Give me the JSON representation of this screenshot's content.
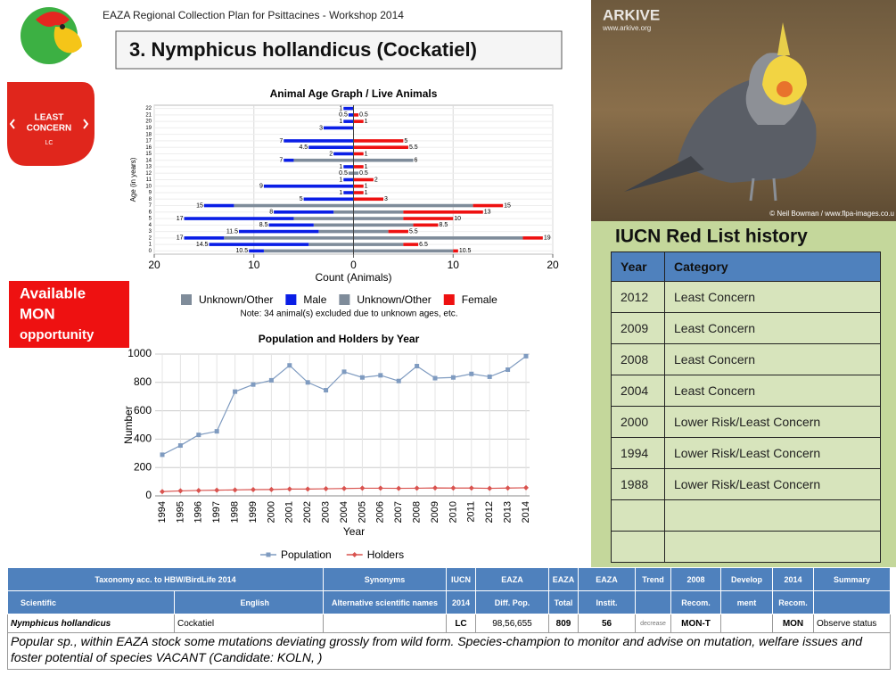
{
  "header": {
    "workshop": "EAZA Regional Collection Plan for Psittacines - Workshop 2014",
    "title": "3. Nymphicus hollandicus (Cockatiel)",
    "badge_lines": [
      "LEAST",
      "CONCERN"
    ],
    "badge_code": "LC",
    "opportunity_lines": [
      "Available",
      "MON",
      "opportunity"
    ]
  },
  "photo": {
    "brand": "ARKIVE",
    "url": "www.arkive.org",
    "credit": "© Neil Bowman / www.flpa-images.co.u"
  },
  "chart_data": [
    {
      "type": "pyramid",
      "title": "Animal Age Graph / Live Animals",
      "xlabel": "Count (Animals)",
      "ylabel": "Age (in years)",
      "note": "Note: 34 animal(s) excluded due to unknown ages, etc.",
      "categories": [
        "0",
        "1",
        "2",
        "3",
        "4",
        "5",
        "6",
        "7",
        "8",
        "9",
        "10",
        "11",
        "12",
        "13",
        "14",
        "15",
        "16",
        "17",
        "18",
        "19",
        "20",
        "21",
        "22"
      ],
      "series": [
        {
          "name": "Unknown/Other",
          "color": "#7f8c9a",
          "side": "left",
          "values": [
            9,
            4.5,
            13,
            3.5,
            4,
            6,
            2,
            12,
            0,
            0,
            0,
            0,
            0.5,
            0,
            6,
            0,
            0,
            0,
            0,
            0,
            0,
            0,
            0
          ]
        },
        {
          "name": "Male",
          "color": "#0a1ee6",
          "side": "left",
          "values": [
            1.5,
            10,
            4,
            8,
            4.5,
            11,
            6,
            3,
            5,
            1,
            9,
            1,
            0,
            1,
            1,
            2,
            4.5,
            7,
            0,
            3,
            1,
            0.5,
            1
          ]
        },
        {
          "name": "Unknown/Other",
          "color": "#7f8c9a",
          "side": "right",
          "values": [
            10,
            5,
            17,
            3.5,
            6,
            5,
            5,
            12,
            0,
            0,
            0,
            0,
            0.5,
            0,
            6,
            0,
            0,
            0,
            0,
            0,
            0,
            0,
            0
          ]
        },
        {
          "name": "Female",
          "color": "#ee1111",
          "side": "right",
          "values": [
            0.5,
            1.5,
            2,
            2,
            2.5,
            5,
            8,
            3,
            3,
            1,
            1,
            2,
            0,
            1,
            0,
            1,
            5.5,
            5,
            0,
            0,
            1,
            0.5,
            0
          ]
        }
      ],
      "left_labels": [
        "10.5",
        "14.5",
        "17",
        "11.5",
        "8.5",
        "17",
        "8",
        "15",
        "5",
        "1",
        "9",
        "1",
        "0.5",
        "1",
        "7",
        "2",
        "4.5",
        "7",
        null,
        "3",
        "1",
        "0.5",
        "1"
      ],
      "right_labels": [
        "10.5",
        "6.5",
        "19",
        "5.5",
        "8.5",
        "10",
        "13",
        "15",
        "3",
        "1",
        "1",
        "2",
        "0.5",
        "1",
        "6",
        "1",
        "5.5",
        "5",
        null,
        null,
        "1",
        "0.5",
        null
      ],
      "xlim": [
        -20,
        20
      ],
      "xticks": [
        {
          "value": -20,
          "label": "20"
        },
        {
          "value": -10,
          "label": "10"
        },
        0,
        10,
        20
      ],
      "grid": true
    },
    {
      "type": "line",
      "title": "Population and Holders by Year",
      "xlabel": "Year",
      "ylabel": "Number",
      "categories": [
        "1994",
        "1995",
        "1996",
        "1997",
        "1998",
        "1999",
        "2000",
        "2001",
        "2002",
        "2003",
        "2004",
        "2005",
        "2006",
        "2007",
        "2008",
        "2009",
        "2010",
        "2011",
        "2012",
        "2013",
        "2014"
      ],
      "series": [
        {
          "name": "Population",
          "color": "#7f9bc0",
          "marker": "square",
          "values": [
            290,
            355,
            430,
            455,
            735,
            785,
            815,
            920,
            800,
            745,
            875,
            835,
            850,
            810,
            915,
            830,
            835,
            860,
            840,
            890,
            985
          ]
        },
        {
          "name": "Holders",
          "color": "#d9534f",
          "marker": "diamond",
          "values": [
            30,
            35,
            38,
            40,
            42,
            44,
            45,
            48,
            48,
            50,
            52,
            54,
            54,
            53,
            54,
            56,
            55,
            55,
            53,
            55,
            57
          ]
        }
      ],
      "ylim": [
        0,
        1000
      ],
      "yticks": [
        0,
        200,
        400,
        600,
        800,
        1000
      ],
      "grid": true,
      "legend": "bottom"
    }
  ],
  "iucn": {
    "title": "IUCN Red List history",
    "columns": [
      "Year",
      "Category"
    ],
    "rows": [
      [
        "2012",
        "Least Concern"
      ],
      [
        "2009",
        "Least Concern"
      ],
      [
        "2008",
        "Least Concern"
      ],
      [
        "2004",
        "Least Concern"
      ],
      [
        "2000",
        "Lower Risk/Least Concern"
      ],
      [
        "1994",
        "Lower Risk/Least Concern"
      ],
      [
        "1988",
        "Lower Risk/Least Concern"
      ]
    ]
  },
  "table": {
    "header_top": [
      "Taxonomy acc. to HBW/BirdLife 2014",
      "Synonyms",
      "IUCN",
      "EAZA",
      "EAZA",
      "EAZA",
      "Trend",
      "2008",
      "Develop",
      "2014",
      "Summary"
    ],
    "header_bottom": [
      "Scientific",
      "English",
      "Alternative scientific names",
      "2014",
      "Diff. Pop.",
      "Total",
      "Instit.",
      null,
      "Recom.",
      "ment",
      "Recom.",
      null
    ],
    "row": [
      "Nymphicus hollandicus",
      "Cockatiel",
      null,
      "LC",
      "98,56,655",
      "809",
      "56",
      "decrease",
      "MON-T",
      null,
      "MON",
      "Observe status"
    ],
    "note": "Popular sp., within EAZA stock some mutations deviating grossly from wild form. Species-champion to monitor and advise on mutation, welfare issues and foster potential of species VACANT (Candidate: KOLN, )"
  }
}
